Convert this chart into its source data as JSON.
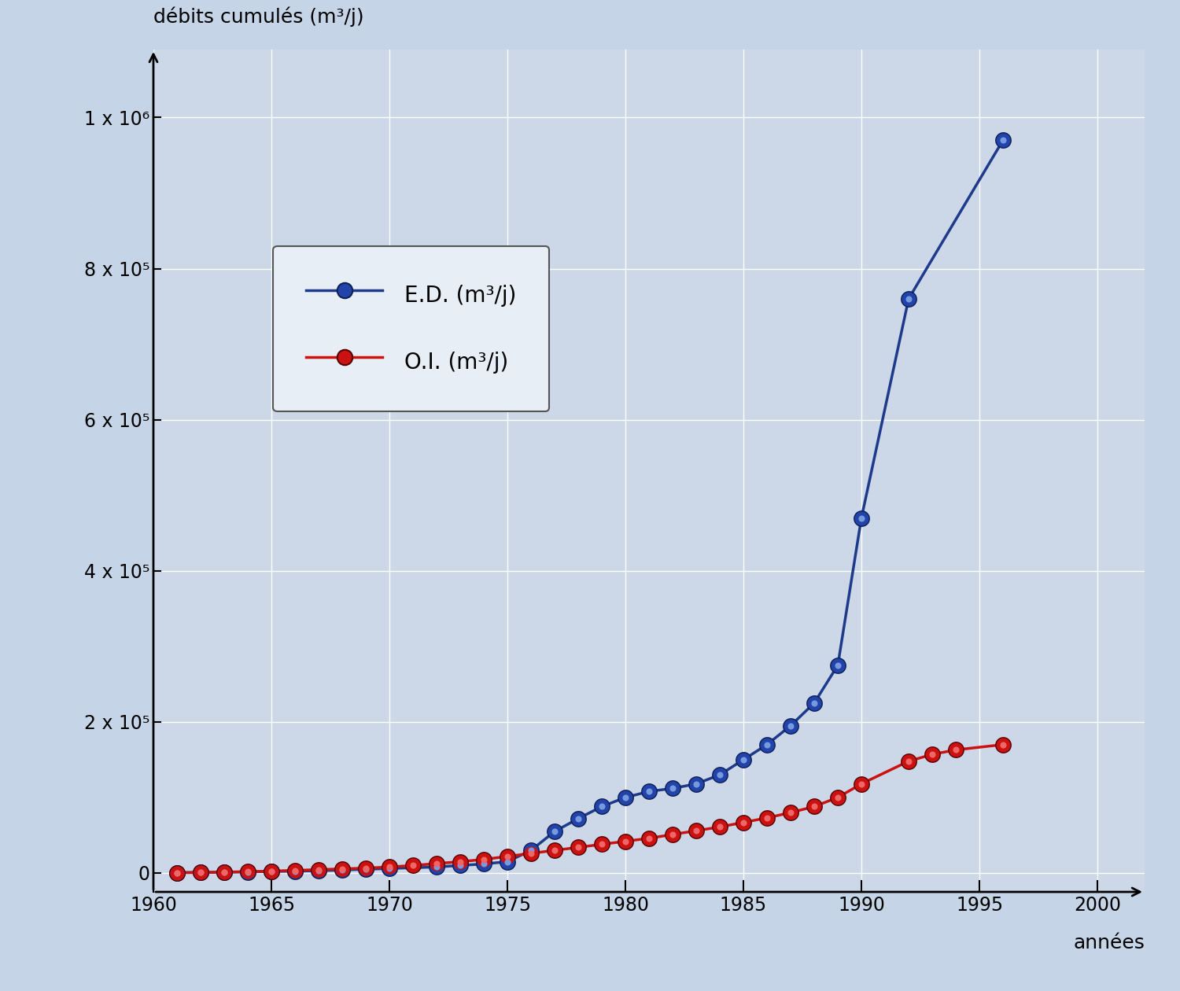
{
  "ylabel": "débits cumulés (m³/j)",
  "xlabel": "années",
  "bg_color_top": "#c8d4e3",
  "bg_color_bottom": "#b8cce0",
  "plot_bg_color": "#c8d8ea",
  "grid_color": "#ffffff",
  "xlim": [
    1960,
    2002
  ],
  "ylim": [
    -25000,
    1090000
  ],
  "xticks": [
    1960,
    1965,
    1970,
    1975,
    1980,
    1985,
    1990,
    1995,
    2000
  ],
  "yticks": [
    0,
    200000,
    400000,
    600000,
    800000,
    1000000
  ],
  "ytick_labels": [
    "0",
    "2 x 10⁵",
    "4 x 10⁵",
    "6 x 10⁵",
    "8 x 10⁵",
    "1 x 10⁶"
  ],
  "ed_years": [
    1961,
    1962,
    1963,
    1964,
    1965,
    1966,
    1967,
    1968,
    1969,
    1970,
    1972,
    1973,
    1974,
    1975,
    1976,
    1977,
    1978,
    1979,
    1980,
    1981,
    1982,
    1983,
    1984,
    1985,
    1986,
    1987,
    1988,
    1989,
    1990,
    1992,
    1996
  ],
  "ed_values": [
    500,
    700,
    1000,
    1500,
    2000,
    2500,
    3000,
    4000,
    5000,
    6000,
    8000,
    10000,
    12000,
    15000,
    30000,
    55000,
    72000,
    88000,
    100000,
    108000,
    112000,
    118000,
    130000,
    150000,
    170000,
    195000,
    225000,
    275000,
    470000,
    760000,
    970000
  ],
  "oi_years": [
    1961,
    1962,
    1963,
    1964,
    1965,
    1966,
    1967,
    1968,
    1969,
    1970,
    1971,
    1972,
    1973,
    1974,
    1975,
    1976,
    1977,
    1978,
    1979,
    1980,
    1981,
    1982,
    1983,
    1984,
    1985,
    1986,
    1987,
    1988,
    1989,
    1990,
    1992,
    1993,
    1994,
    1996
  ],
  "oi_values": [
    500,
    800,
    1200,
    1800,
    2500,
    3500,
    4500,
    5500,
    6500,
    8000,
    10000,
    12500,
    15000,
    18000,
    22000,
    26000,
    30000,
    34000,
    38000,
    42000,
    46000,
    51000,
    56000,
    61000,
    67000,
    73000,
    80000,
    88000,
    100000,
    118000,
    148000,
    157000,
    163000,
    170000
  ],
  "ed_color": "#1e3a8a",
  "oi_color": "#cc1111",
  "ed_marker_face": "#3355bb",
  "ed_marker_highlight": "#8899dd",
  "oi_marker_face": "#cc2222",
  "oi_marker_highlight": "#ee6666",
  "legend_ed": "E.D. (m³/j)",
  "legend_oi": "O.I. (m³/j)",
  "marker_size": 13,
  "line_width": 2.5
}
